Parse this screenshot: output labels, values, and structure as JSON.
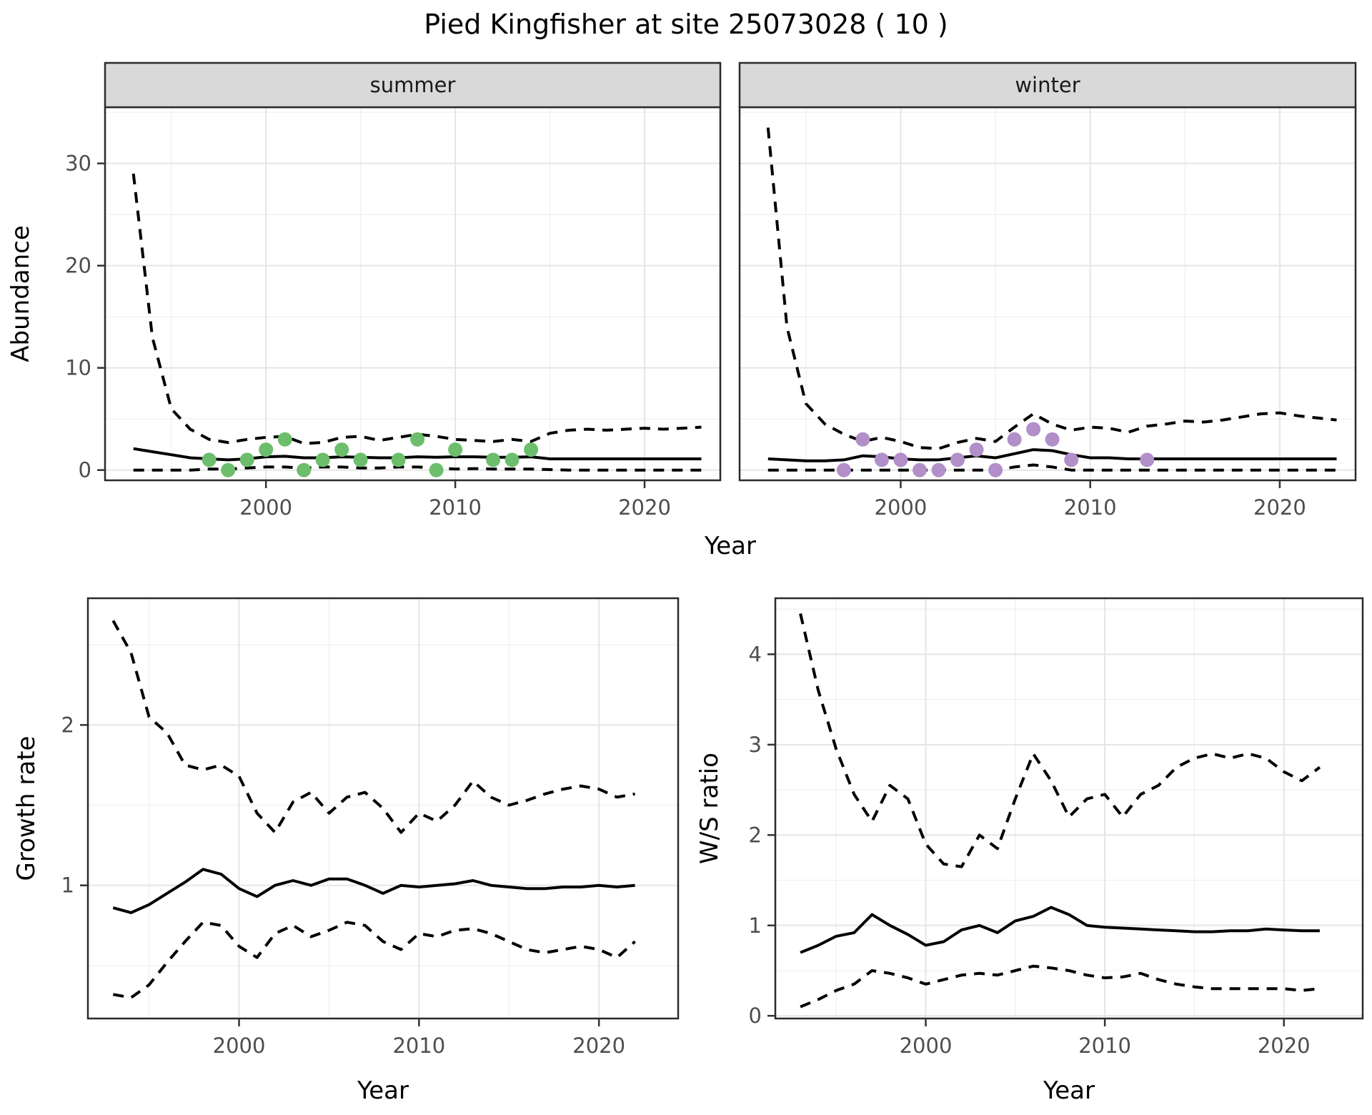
{
  "title": "Pied Kingfisher at site 25073028 ( 10 )",
  "colors": {
    "line": "#000000",
    "summer_point": "#6cbe6c",
    "winter_point": "#b28fc9",
    "strip_bg": "#d9d9d9",
    "panel_border": "#2a2a2a",
    "grid_major": "#e5e5e5",
    "grid_minor": "#f0f0f0",
    "tick_text": "#4d4d4d",
    "axis_title_text": "#000000"
  },
  "chart_data": [
    {
      "id": "abundance-summer",
      "type": "line",
      "facet_label": "summer",
      "xlabel": "Year",
      "ylabel": "Abundance",
      "xlim": [
        1991.5,
        2024
      ],
      "ylim": [
        -1,
        35.5
      ],
      "xticks": [
        2000,
        2010,
        2020
      ],
      "yticks": [
        0,
        10,
        20,
        30
      ],
      "xminor": [
        1995,
        2005,
        2015
      ],
      "yminor": [
        5,
        15,
        25,
        35
      ],
      "grid": true,
      "legend": "none",
      "series": [
        {
          "name": "upper_95ci",
          "style": "dashed",
          "x": [
            1993,
            1994,
            1995,
            1996,
            1997,
            1998,
            1999,
            2000,
            2001,
            2002,
            2003,
            2004,
            2005,
            2006,
            2007,
            2008,
            2009,
            2010,
            2011,
            2012,
            2013,
            2014,
            2015,
            2016,
            2017,
            2018,
            2019,
            2020,
            2021,
            2022,
            2023
          ],
          "y": [
            29,
            13,
            6,
            4,
            3,
            2.7,
            3.0,
            3.2,
            3.3,
            2.6,
            2.7,
            3.2,
            3.3,
            2.9,
            3.2,
            3.5,
            3.3,
            3.0,
            2.9,
            2.8,
            3.0,
            2.8,
            3.6,
            3.9,
            4.0,
            3.9,
            4.0,
            4.1,
            4.0,
            4.1,
            4.2
          ]
        },
        {
          "name": "median",
          "style": "solid",
          "x": [
            1993,
            1994,
            1995,
            1996,
            1997,
            1998,
            1999,
            2000,
            2001,
            2002,
            2003,
            2004,
            2005,
            2006,
            2007,
            2008,
            2009,
            2010,
            2011,
            2012,
            2013,
            2014,
            2015,
            2016,
            2017,
            2018,
            2019,
            2020,
            2021,
            2022,
            2023
          ],
          "y": [
            2.1,
            1.8,
            1.5,
            1.2,
            1.1,
            1.0,
            1.1,
            1.3,
            1.35,
            1.2,
            1.2,
            1.3,
            1.25,
            1.2,
            1.2,
            1.3,
            1.25,
            1.3,
            1.3,
            1.25,
            1.25,
            1.3,
            1.1,
            1.1,
            1.1,
            1.1,
            1.1,
            1.1,
            1.1,
            1.1,
            1.1
          ]
        },
        {
          "name": "lower_95ci",
          "style": "dashed",
          "x": [
            1993,
            1994,
            1995,
            1996,
            1997,
            1998,
            1999,
            2000,
            2001,
            2002,
            2003,
            2004,
            2005,
            2006,
            2007,
            2008,
            2009,
            2010,
            2011,
            2012,
            2013,
            2014,
            2015,
            2016,
            2017,
            2018,
            2019,
            2020,
            2021,
            2022,
            2023
          ],
          "y": [
            0,
            0,
            0,
            0,
            0.1,
            0.1,
            0.2,
            0.3,
            0.3,
            0.2,
            0.3,
            0.3,
            0.2,
            0.2,
            0.3,
            0.3,
            0.2,
            0.1,
            0.15,
            0.1,
            0.1,
            0.1,
            0.05,
            0,
            0,
            0,
            0,
            0,
            0,
            0,
            0
          ]
        }
      ],
      "points": {
        "name": "observed_counts",
        "color": "#6cbe6c",
        "x": [
          1997,
          1998,
          1999,
          2000,
          2001,
          2002,
          2003,
          2004,
          2005,
          2007,
          2008,
          2009,
          2010,
          2012,
          2013,
          2014
        ],
        "y": [
          1,
          0,
          1,
          2,
          3,
          0,
          1,
          2,
          1,
          1,
          3,
          0,
          2,
          1,
          1,
          2
        ]
      }
    },
    {
      "id": "abundance-winter",
      "type": "line",
      "facet_label": "winter",
      "xlabel": "Year",
      "ylabel": "Abundance",
      "xlim": [
        1991.5,
        2024
      ],
      "ylim": [
        -1,
        35.5
      ],
      "xticks": [
        2000,
        2010,
        2020
      ],
      "yticks": [
        0,
        10,
        20,
        30
      ],
      "xminor": [
        1995,
        2005,
        2015
      ],
      "yminor": [
        5,
        15,
        25,
        35
      ],
      "grid": true,
      "legend": "none",
      "series": [
        {
          "name": "upper_95ci",
          "style": "dashed",
          "x": [
            1993,
            1994,
            1995,
            1996,
            1997,
            1998,
            1999,
            2000,
            2001,
            2002,
            2003,
            2004,
            2005,
            2006,
            2007,
            2008,
            2009,
            2010,
            2011,
            2012,
            2013,
            2014,
            2015,
            2016,
            2017,
            2018,
            2019,
            2020,
            2021,
            2022,
            2023
          ],
          "y": [
            33.5,
            14,
            6.5,
            4.5,
            3.5,
            2.8,
            3.2,
            2.8,
            2.2,
            2.1,
            2.7,
            3.1,
            2.8,
            4.2,
            5.5,
            4.5,
            3.9,
            4.2,
            4.1,
            3.7,
            4.3,
            4.5,
            4.8,
            4.7,
            4.9,
            5.2,
            5.5,
            5.6,
            5.3,
            5.1,
            4.9
          ]
        },
        {
          "name": "median",
          "style": "solid",
          "x": [
            1993,
            1994,
            1995,
            1996,
            1997,
            1998,
            1999,
            2000,
            2001,
            2002,
            2003,
            2004,
            2005,
            2006,
            2007,
            2008,
            2009,
            2010,
            2011,
            2012,
            2013,
            2014,
            2015,
            2016,
            2017,
            2018,
            2019,
            2020,
            2021,
            2022,
            2023
          ],
          "y": [
            1.1,
            1.0,
            0.9,
            0.9,
            1.0,
            1.4,
            1.3,
            1.1,
            1.0,
            1.0,
            1.2,
            1.4,
            1.2,
            1.6,
            2.0,
            1.9,
            1.5,
            1.2,
            1.2,
            1.1,
            1.1,
            1.1,
            1.1,
            1.1,
            1.1,
            1.1,
            1.1,
            1.1,
            1.1,
            1.1,
            1.1
          ]
        },
        {
          "name": "lower_95ci",
          "style": "dashed",
          "x": [
            1993,
            1994,
            1995,
            1996,
            1997,
            1998,
            1999,
            2000,
            2001,
            2002,
            2003,
            2004,
            2005,
            2006,
            2007,
            2008,
            2009,
            2010,
            2011,
            2012,
            2013,
            2014,
            2015,
            2016,
            2017,
            2018,
            2019,
            2020,
            2021,
            2022,
            2023
          ],
          "y": [
            0,
            0,
            0,
            0,
            0,
            0,
            0,
            0,
            0,
            0,
            0,
            0,
            0,
            0.3,
            0.5,
            0.3,
            0,
            0,
            0,
            0,
            0,
            0,
            0,
            0,
            0,
            0,
            0,
            0,
            0,
            0,
            0
          ]
        }
      ],
      "points": {
        "name": "observed_counts",
        "color": "#b28fc9",
        "x": [
          1997,
          1998,
          1999,
          2000,
          2001,
          2002,
          2003,
          2004,
          2005,
          2006,
          2007,
          2008,
          2009,
          2013
        ],
        "y": [
          0,
          3,
          1,
          1,
          0,
          0,
          1,
          2,
          0,
          3,
          4,
          3,
          1,
          1
        ]
      }
    },
    {
      "id": "growth-rate",
      "type": "line",
      "facet_label": "",
      "xlabel": "Year",
      "ylabel": "Growth rate",
      "xlim": [
        1991.6,
        2024.4
      ],
      "ylim": [
        0.17,
        2.79
      ],
      "xticks": [
        2000,
        2010,
        2020
      ],
      "yticks": [
        1,
        2
      ],
      "xminor": [
        1995,
        2005,
        2015
      ],
      "yminor": [
        0.5,
        1.5,
        2.5
      ],
      "grid": true,
      "legend": "none",
      "series": [
        {
          "name": "upper_95ci",
          "style": "dashed",
          "x": [
            1993,
            1994,
            1995,
            1996,
            1997,
            1998,
            1999,
            2000,
            2001,
            2002,
            2003,
            2004,
            2005,
            2006,
            2007,
            2008,
            2009,
            2010,
            2011,
            2012,
            2013,
            2014,
            2015,
            2016,
            2017,
            2018,
            2019,
            2020,
            2021,
            2022
          ],
          "y": [
            2.65,
            2.45,
            2.05,
            1.95,
            1.75,
            1.72,
            1.75,
            1.68,
            1.45,
            1.33,
            1.52,
            1.58,
            1.45,
            1.55,
            1.58,
            1.48,
            1.33,
            1.45,
            1.4,
            1.5,
            1.65,
            1.55,
            1.5,
            1.53,
            1.57,
            1.6,
            1.62,
            1.6,
            1.55,
            1.57
          ]
        },
        {
          "name": "median",
          "style": "solid",
          "x": [
            1993,
            1994,
            1995,
            1996,
            1997,
            1998,
            1999,
            2000,
            2001,
            2002,
            2003,
            2004,
            2005,
            2006,
            2007,
            2008,
            2009,
            2010,
            2011,
            2012,
            2013,
            2014,
            2015,
            2016,
            2017,
            2018,
            2019,
            2020,
            2021,
            2022
          ],
          "y": [
            0.86,
            0.83,
            0.88,
            0.95,
            1.02,
            1.1,
            1.07,
            0.98,
            0.93,
            1.0,
            1.03,
            1.0,
            1.04,
            1.04,
            1.0,
            0.95,
            1.0,
            0.99,
            1.0,
            1.01,
            1.03,
            1.0,
            0.99,
            0.98,
            0.98,
            0.99,
            0.99,
            1.0,
            0.99,
            1.0
          ]
        },
        {
          "name": "lower_95ci",
          "style": "dashed",
          "x": [
            1993,
            1994,
            1995,
            1996,
            1997,
            1998,
            1999,
            2000,
            2001,
            2002,
            2003,
            2004,
            2005,
            2006,
            2007,
            2008,
            2009,
            2010,
            2011,
            2012,
            2013,
            2014,
            2015,
            2016,
            2017,
            2018,
            2019,
            2020,
            2021,
            2022
          ],
          "y": [
            0.32,
            0.3,
            0.38,
            0.52,
            0.65,
            0.77,
            0.75,
            0.62,
            0.55,
            0.7,
            0.75,
            0.68,
            0.72,
            0.77,
            0.75,
            0.65,
            0.6,
            0.7,
            0.68,
            0.72,
            0.73,
            0.7,
            0.65,
            0.6,
            0.58,
            0.6,
            0.62,
            0.6,
            0.55,
            0.65
          ]
        }
      ],
      "points": null
    },
    {
      "id": "ws-ratio",
      "type": "line",
      "facet_label": "",
      "xlabel": "Year",
      "ylabel": "W/S ratio",
      "xlim": [
        1991.6,
        2024.4
      ],
      "ylim": [
        -0.03,
        4.62
      ],
      "xticks": [
        2000,
        2010,
        2020
      ],
      "yticks": [
        0,
        1,
        2,
        3,
        4
      ],
      "xminor": [
        1995,
        2005,
        2015
      ],
      "yminor": [
        0.5,
        1.5,
        2.5,
        3.5,
        4.5
      ],
      "grid": true,
      "legend": "none",
      "series": [
        {
          "name": "upper_95ci",
          "style": "dashed",
          "x": [
            1993,
            1994,
            1995,
            1996,
            1997,
            1998,
            1999,
            2000,
            2001,
            2002,
            2003,
            2004,
            2005,
            2006,
            2007,
            2008,
            2009,
            2010,
            2011,
            2012,
            2013,
            2014,
            2015,
            2016,
            2017,
            2018,
            2019,
            2020,
            2021,
            2022
          ],
          "y": [
            4.45,
            3.6,
            2.95,
            2.45,
            2.15,
            2.55,
            2.4,
            1.9,
            1.68,
            1.65,
            2.0,
            1.85,
            2.4,
            2.9,
            2.6,
            2.2,
            2.4,
            2.45,
            2.2,
            2.45,
            2.55,
            2.75,
            2.85,
            2.9,
            2.85,
            2.9,
            2.85,
            2.7,
            2.6,
            2.75
          ]
        },
        {
          "name": "median",
          "style": "solid",
          "x": [
            1993,
            1994,
            1995,
            1996,
            1997,
            1998,
            1999,
            2000,
            2001,
            2002,
            2003,
            2004,
            2005,
            2006,
            2007,
            2008,
            2009,
            2010,
            2011,
            2012,
            2013,
            2014,
            2015,
            2016,
            2017,
            2018,
            2019,
            2020,
            2021,
            2022
          ],
          "y": [
            0.7,
            0.78,
            0.88,
            0.92,
            1.12,
            1.0,
            0.9,
            0.78,
            0.82,
            0.95,
            1.0,
            0.92,
            1.05,
            1.1,
            1.2,
            1.12,
            1.0,
            0.98,
            0.97,
            0.96,
            0.95,
            0.94,
            0.93,
            0.93,
            0.94,
            0.94,
            0.96,
            0.95,
            0.94,
            0.94
          ]
        },
        {
          "name": "lower_95ci",
          "style": "dashed",
          "x": [
            1993,
            1994,
            1995,
            1996,
            1997,
            1998,
            1999,
            2000,
            2001,
            2002,
            2003,
            2004,
            2005,
            2006,
            2007,
            2008,
            2009,
            2010,
            2011,
            2012,
            2013,
            2014,
            2015,
            2016,
            2017,
            2018,
            2019,
            2020,
            2021,
            2022
          ],
          "y": [
            0.1,
            0.18,
            0.28,
            0.35,
            0.5,
            0.47,
            0.42,
            0.35,
            0.4,
            0.45,
            0.47,
            0.45,
            0.5,
            0.55,
            0.53,
            0.5,
            0.45,
            0.42,
            0.43,
            0.47,
            0.4,
            0.35,
            0.32,
            0.3,
            0.3,
            0.3,
            0.3,
            0.3,
            0.28,
            0.3
          ]
        }
      ],
      "points": null
    }
  ]
}
